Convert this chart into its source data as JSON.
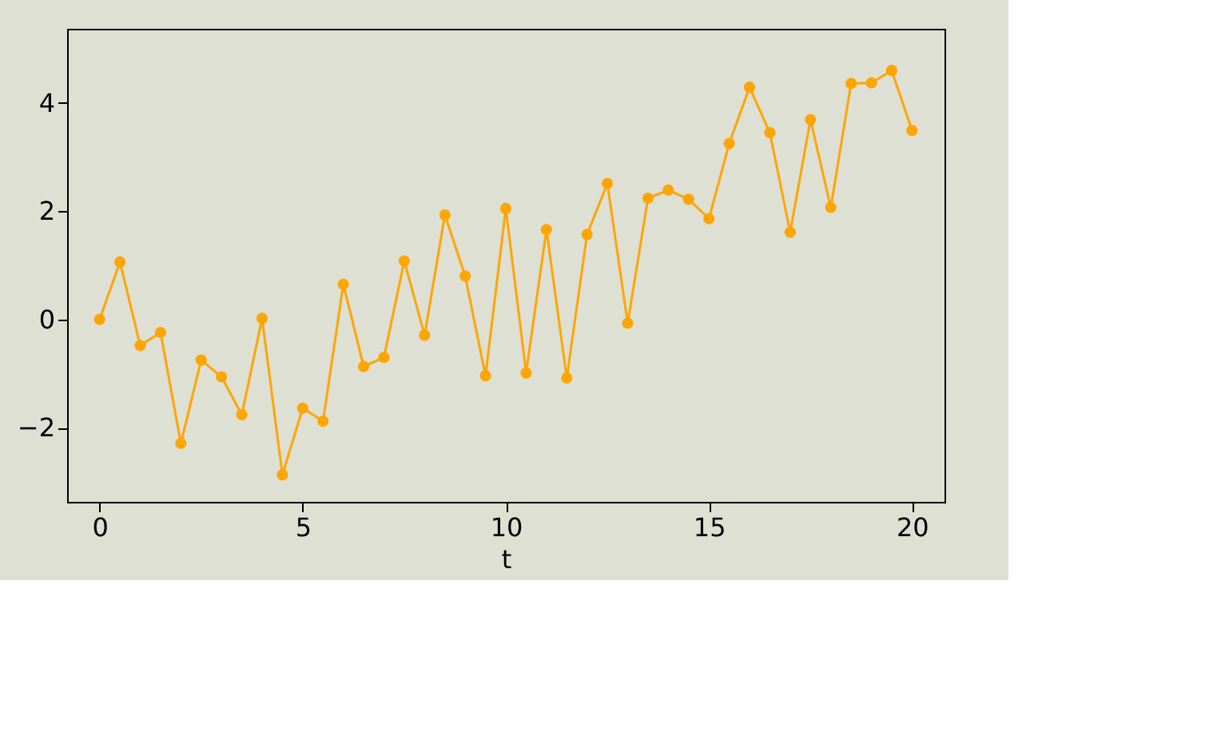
{
  "chart_data": {
    "type": "line",
    "xlabel": "t",
    "marker": "circle",
    "line_style": "solid",
    "grid": false,
    "x": [
      0,
      0.5,
      1,
      1.5,
      2,
      2.5,
      3,
      3.5,
      4,
      4.5,
      5,
      5.5,
      6,
      6.5,
      7,
      7.5,
      8,
      8.5,
      9,
      9.5,
      10,
      10.5,
      11,
      11.5,
      12,
      12.5,
      13,
      13.5,
      14,
      14.5,
      15,
      15.5,
      16,
      16.5,
      17,
      17.5,
      18,
      18.5,
      19,
      19.5,
      20
    ],
    "series": [
      {
        "color": "#ffa500",
        "values": [
          0.0,
          1.06,
          -0.48,
          -0.24,
          -2.29,
          -0.75,
          -1.06,
          -1.76,
          0.02,
          -2.87,
          -1.64,
          -1.88,
          0.65,
          -0.87,
          -0.7,
          1.08,
          -0.29,
          1.93,
          0.8,
          -1.04,
          2.05,
          -0.99,
          1.66,
          -1.08,
          1.57,
          2.51,
          -0.07,
          2.24,
          2.39,
          2.22,
          1.86,
          3.25,
          4.29,
          3.45,
          1.61,
          3.69,
          2.07,
          4.36,
          4.37,
          4.6,
          3.49
        ]
      }
    ],
    "xlim": [
      -0.8,
      20.8
    ],
    "ylim": [
      -3.37,
      5.37
    ],
    "xticks": [
      0,
      5,
      10,
      15,
      20
    ],
    "yticks": [
      -2,
      0,
      2,
      4
    ]
  }
}
